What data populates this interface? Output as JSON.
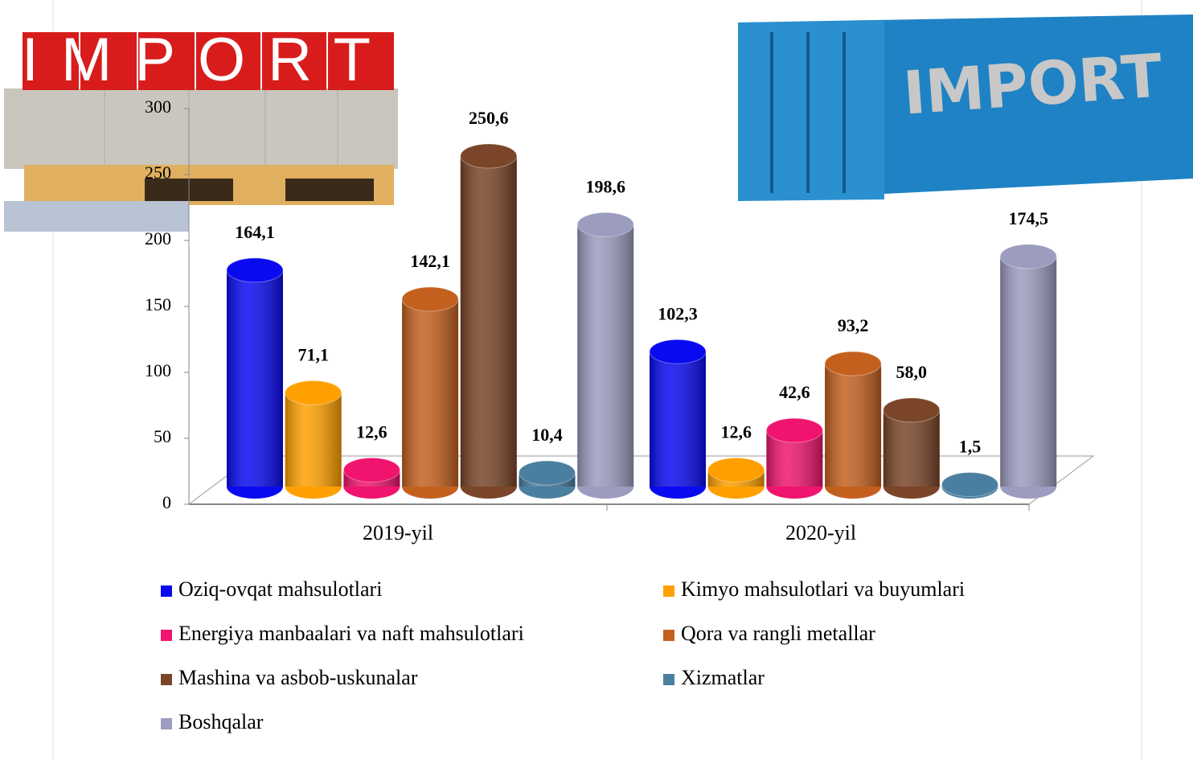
{
  "chart_data": {
    "type": "bar3d",
    "annotations": [
      "IMPORT",
      "IMPORT"
    ],
    "categories": [
      "2019-yil",
      "2020-yil"
    ],
    "ylim": [
      0,
      300
    ],
    "yticks": [
      0,
      50,
      100,
      150,
      200,
      250,
      300
    ],
    "grid": false,
    "legend": "bottom",
    "series": [
      {
        "name": "Oziq-ovqat mahsulotlari",
        "color": "#0a0af0",
        "values": [
          164.1,
          102.3
        ],
        "value_labels": [
          "164,1",
          "102,3"
        ]
      },
      {
        "name": "Kimyo mahsulotlari va buyumlari",
        "color": "#ffa000",
        "values": [
          71.1,
          12.6
        ],
        "value_labels": [
          "71,1",
          "12,6"
        ]
      },
      {
        "name": "Energiya manbaalari va naft mahsulotlari",
        "color": "#f0146e",
        "values": [
          12.6,
          42.6
        ],
        "value_labels": [
          "12,6",
          "42,6"
        ]
      },
      {
        "name": "Qora va rangli metallar",
        "color": "#c4601e",
        "values": [
          142.1,
          93.2
        ],
        "value_labels": [
          "142,1",
          "93,2"
        ]
      },
      {
        "name": "Mashina va asbob-uskunalar",
        "color": "#7a4528",
        "values": [
          250.6,
          58.0
        ],
        "value_labels": [
          "250,6",
          "58,0"
        ]
      },
      {
        "name": "Xizmatlar",
        "color": "#4a7fa0",
        "values": [
          10.4,
          1.5
        ],
        "value_labels": [
          "10,4",
          "1,5"
        ]
      },
      {
        "name": "Boshqalar",
        "color": "#9c9cc0",
        "values": [
          198.6,
          174.5
        ],
        "value_labels": [
          "198,6",
          "174,5"
        ]
      }
    ]
  }
}
